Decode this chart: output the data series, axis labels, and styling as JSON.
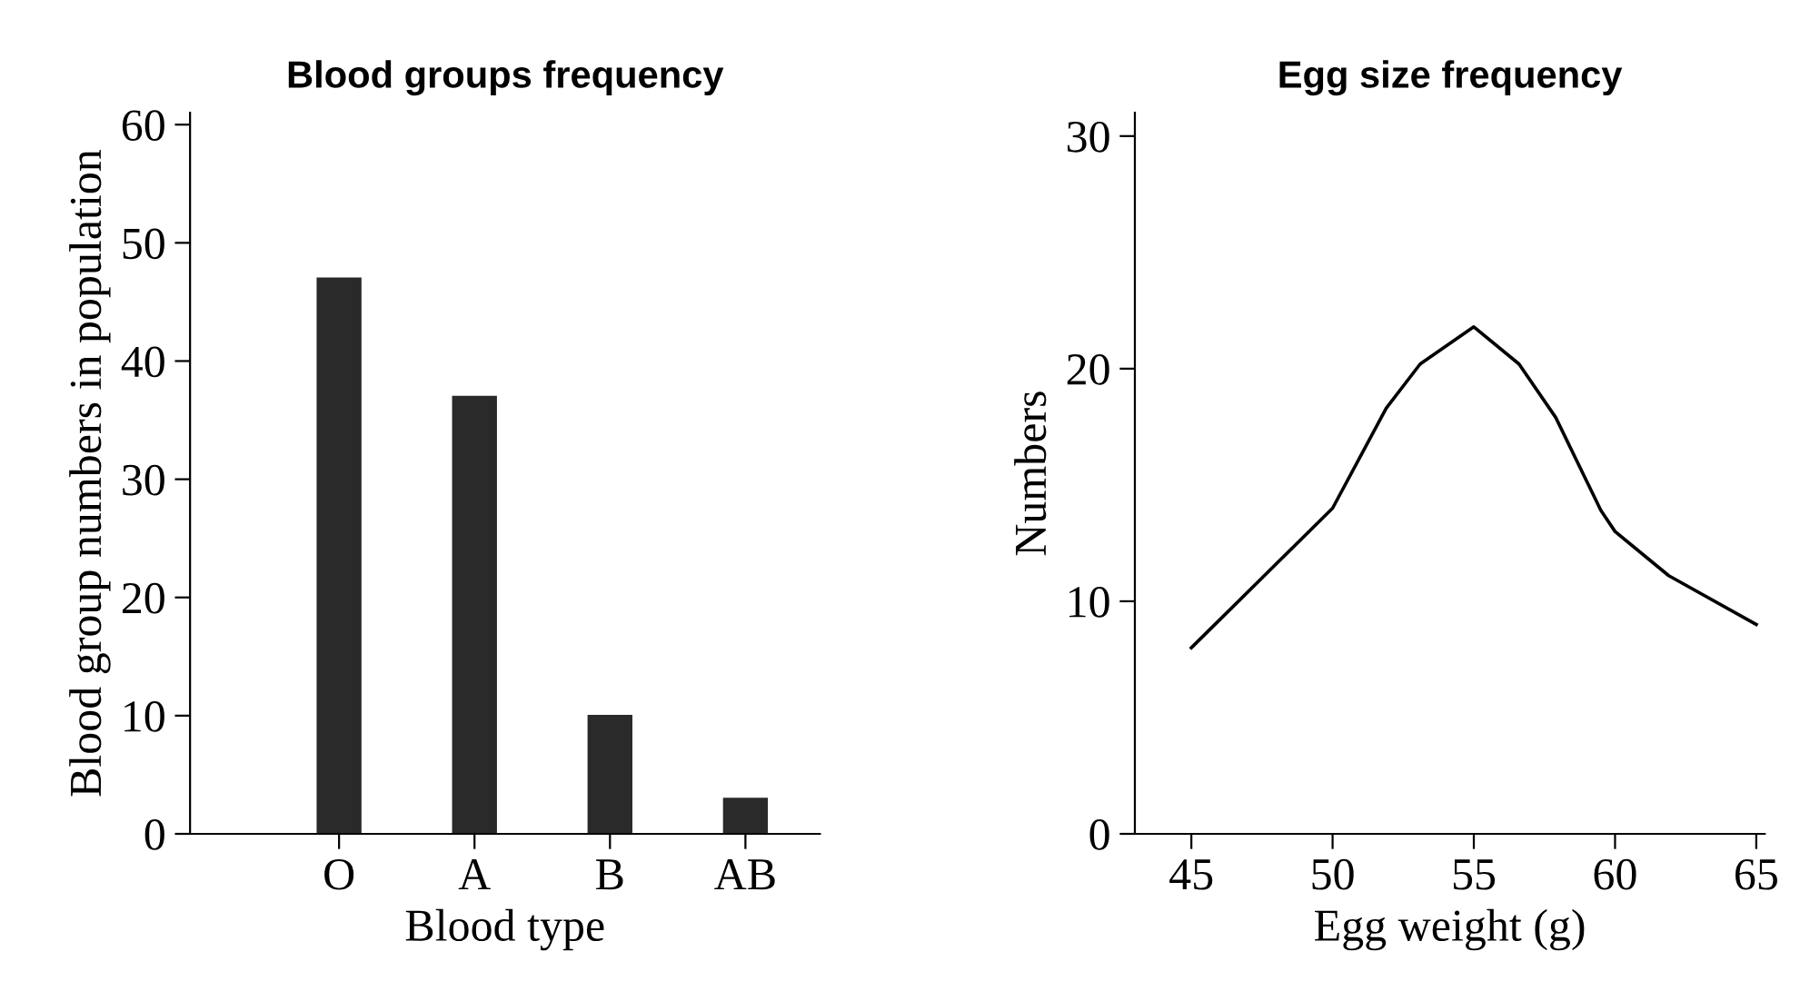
{
  "chart_data": [
    {
      "type": "bar",
      "title": "Blood groups frequency",
      "xlabel": "Blood type",
      "ylabel": "Blood group numbers in population",
      "categories": [
        "O",
        "A",
        "B",
        "AB"
      ],
      "values": [
        47,
        37,
        10,
        3
      ],
      "color": "#2a2a2a",
      "ylim": [
        0,
        61
      ],
      "yticks": [
        0,
        10,
        20,
        30,
        40,
        50,
        60
      ],
      "grid": false,
      "legend": false
    },
    {
      "type": "line",
      "title": "Egg size frequency",
      "xlabel": "Egg weight (g)",
      "ylabel": "Numbers",
      "x": [
        45,
        50,
        51.9,
        53.1,
        55,
        56.6,
        57.9,
        59.5,
        60,
        61.9,
        65
      ],
      "values": [
        8,
        14,
        18.3,
        20.2,
        21.8,
        20.2,
        17.9,
        13.9,
        13,
        11.1,
        9
      ],
      "color": "#000000",
      "xlim": [
        43,
        65.3
      ],
      "xticks": [
        45,
        50,
        55,
        60,
        65
      ],
      "ylim": [
        0,
        31
      ],
      "yticks": [
        0,
        10,
        20,
        30
      ],
      "grid": false,
      "legend": false,
      "marker": "none",
      "line_style": "solid"
    }
  ]
}
